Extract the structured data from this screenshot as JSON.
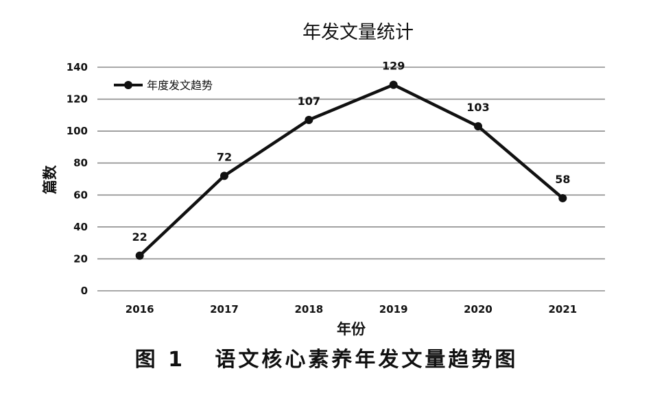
{
  "chart_data": {
    "type": "line",
    "title": "年发文量统计",
    "xlabel": "年份",
    "ylabel": "篇数",
    "categories": [
      "2016",
      "2017",
      "2018",
      "2019",
      "2020",
      "2021"
    ],
    "series": [
      {
        "name": "年度发文趋势",
        "values": [
          22,
          72,
          107,
          129,
          103,
          58
        ],
        "color": "#111111"
      }
    ],
    "ylim": [
      0,
      140
    ],
    "yticks": [
      0,
      20,
      40,
      60,
      80,
      100,
      120,
      140
    ],
    "ytick_labels": [
      "0",
      "20",
      "40",
      "60",
      "80",
      "100",
      "120",
      "140"
    ],
    "data_labels": [
      "22",
      "72",
      "107",
      "129",
      "103",
      "58"
    ],
    "grid": true,
    "legend_position": "top-left",
    "gridline_color": "#8c8c8c"
  },
  "caption": "图 1   语文核心素养年发文量趋势图"
}
